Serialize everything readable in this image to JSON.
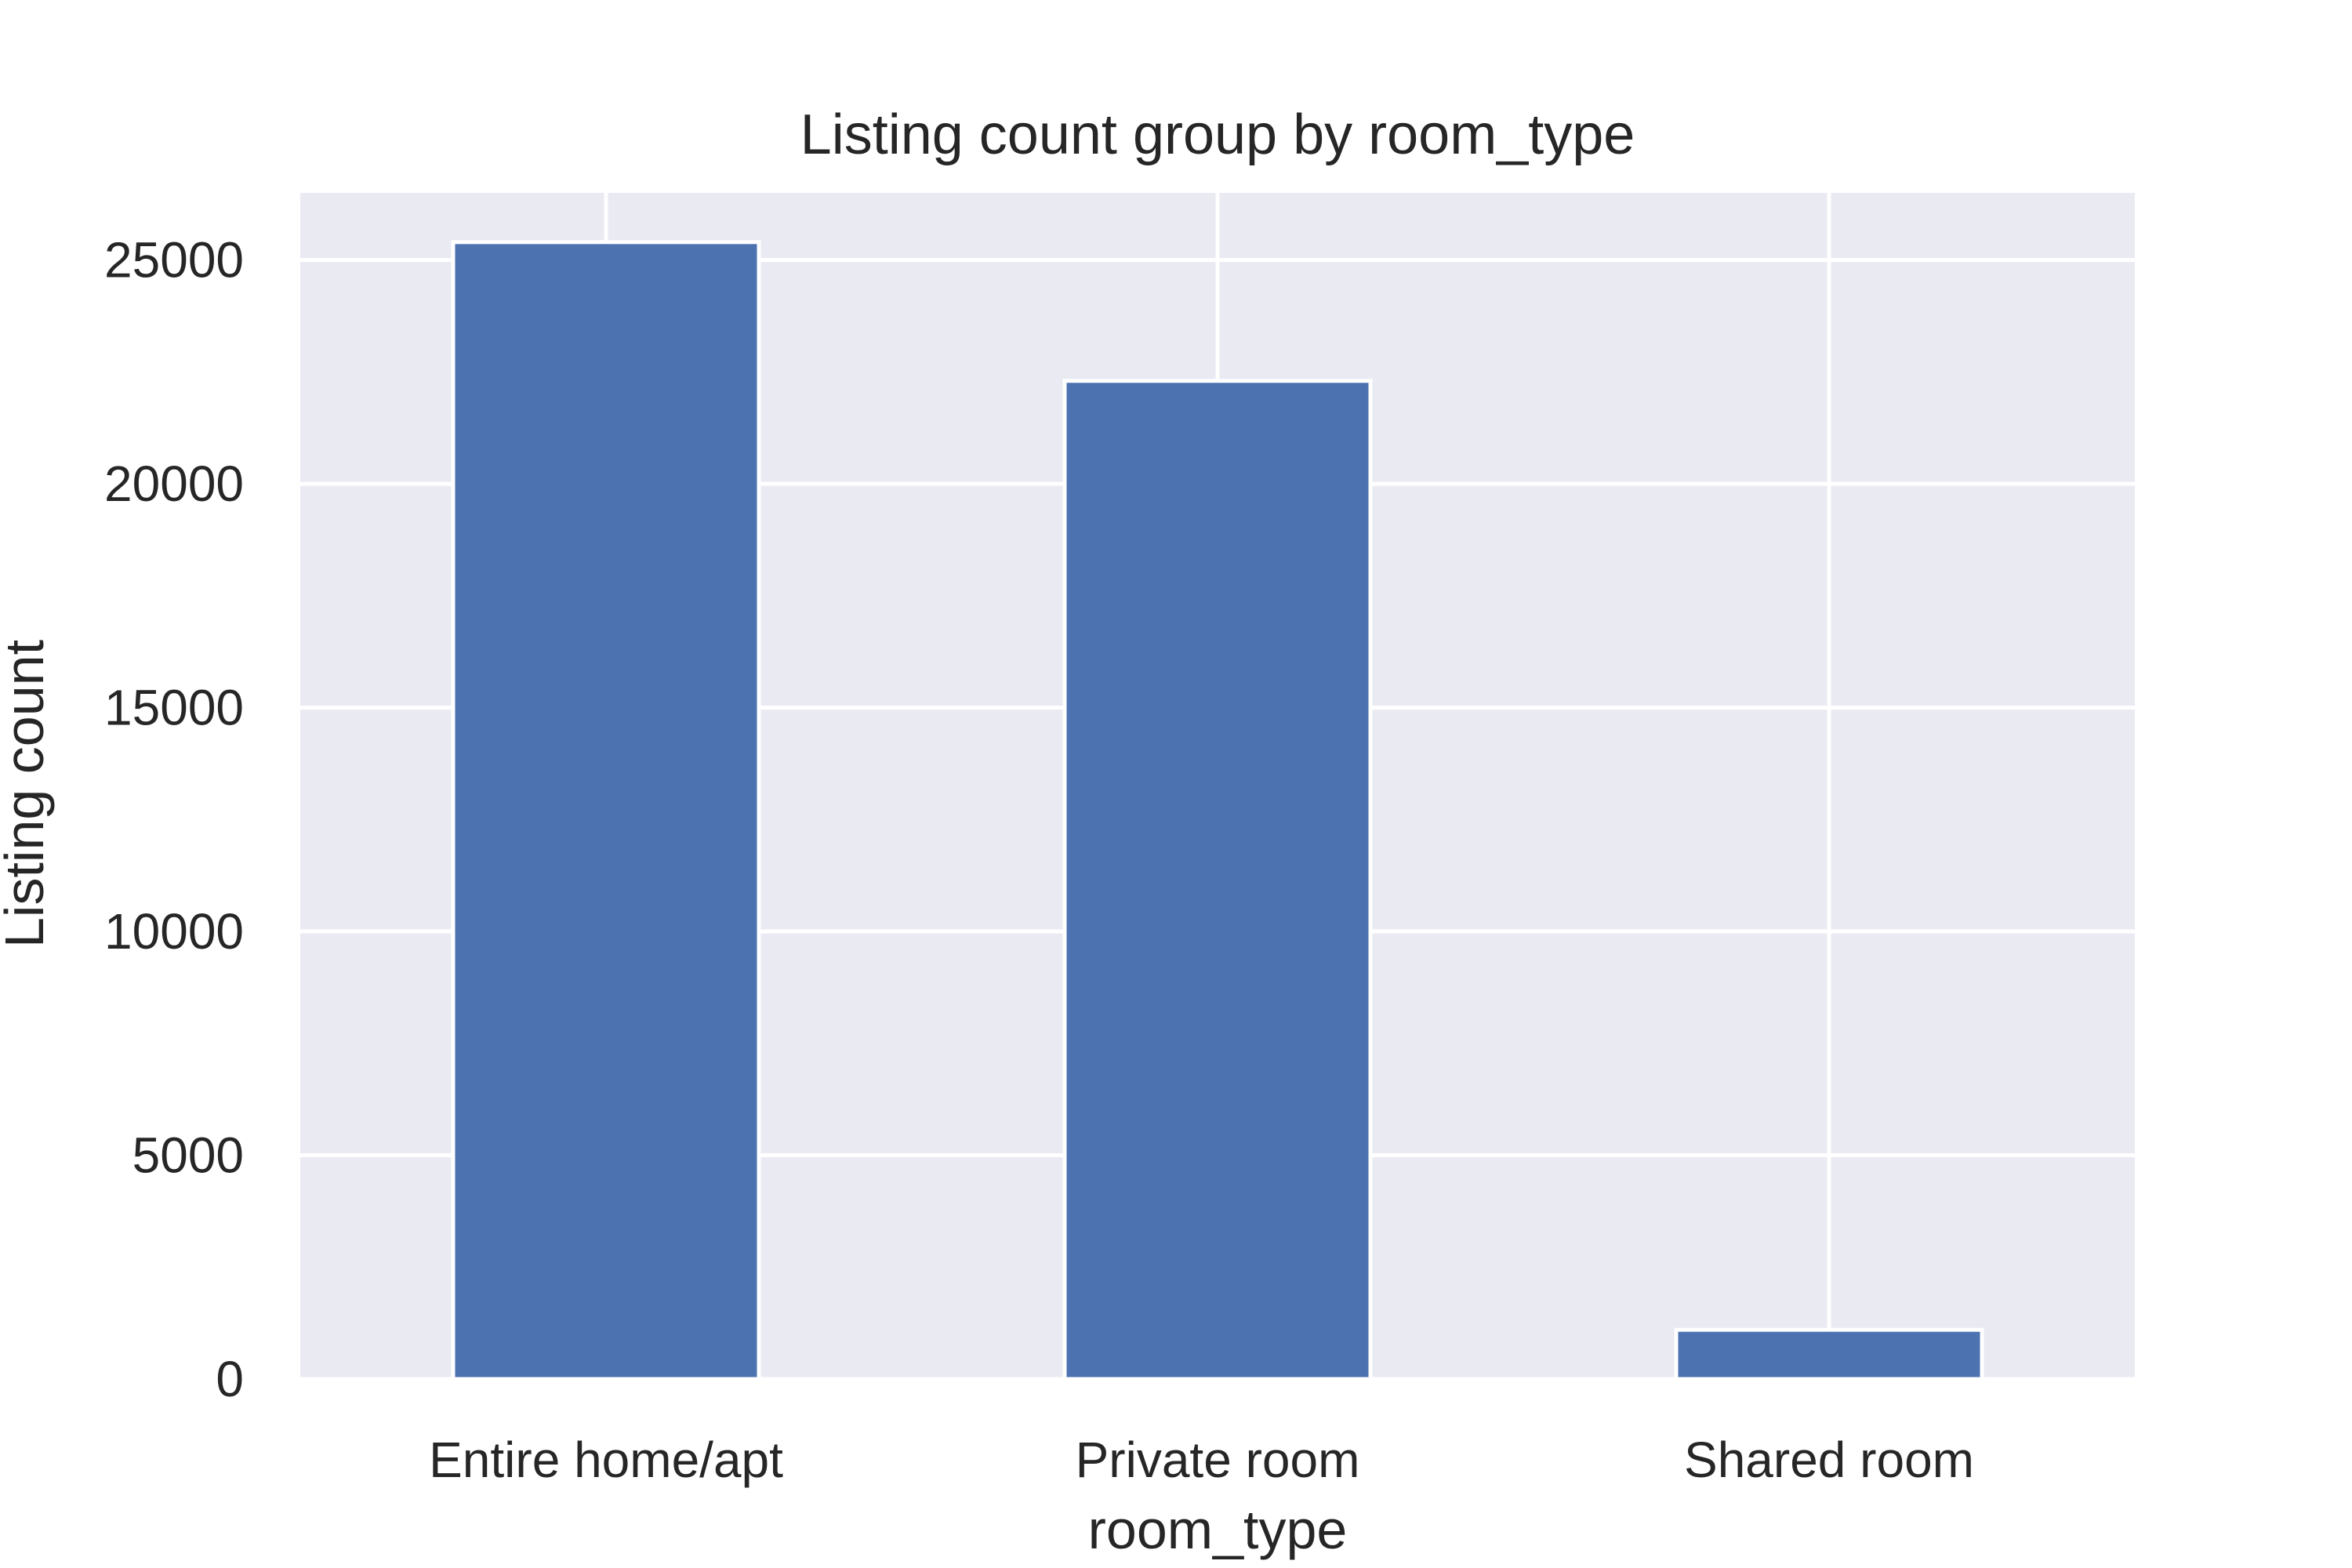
{
  "chart_data": {
    "type": "bar",
    "title": "Listing count group by room_type",
    "xlabel": "room_type",
    "ylabel": "Listing count",
    "categories": [
      "Entire home/apt",
      "Private room",
      "Shared room"
    ],
    "values": [
      25400,
      22300,
      1100
    ],
    "ylim": [
      0,
      26500
    ],
    "yticks": [
      0,
      5000,
      10000,
      15000,
      20000,
      25000
    ],
    "grid": true,
    "legend": "none",
    "colors": {
      "bar": "#4c72b0",
      "plot_background": "#eaeaf2",
      "grid": "#ffffff",
      "text": "#262626"
    }
  }
}
